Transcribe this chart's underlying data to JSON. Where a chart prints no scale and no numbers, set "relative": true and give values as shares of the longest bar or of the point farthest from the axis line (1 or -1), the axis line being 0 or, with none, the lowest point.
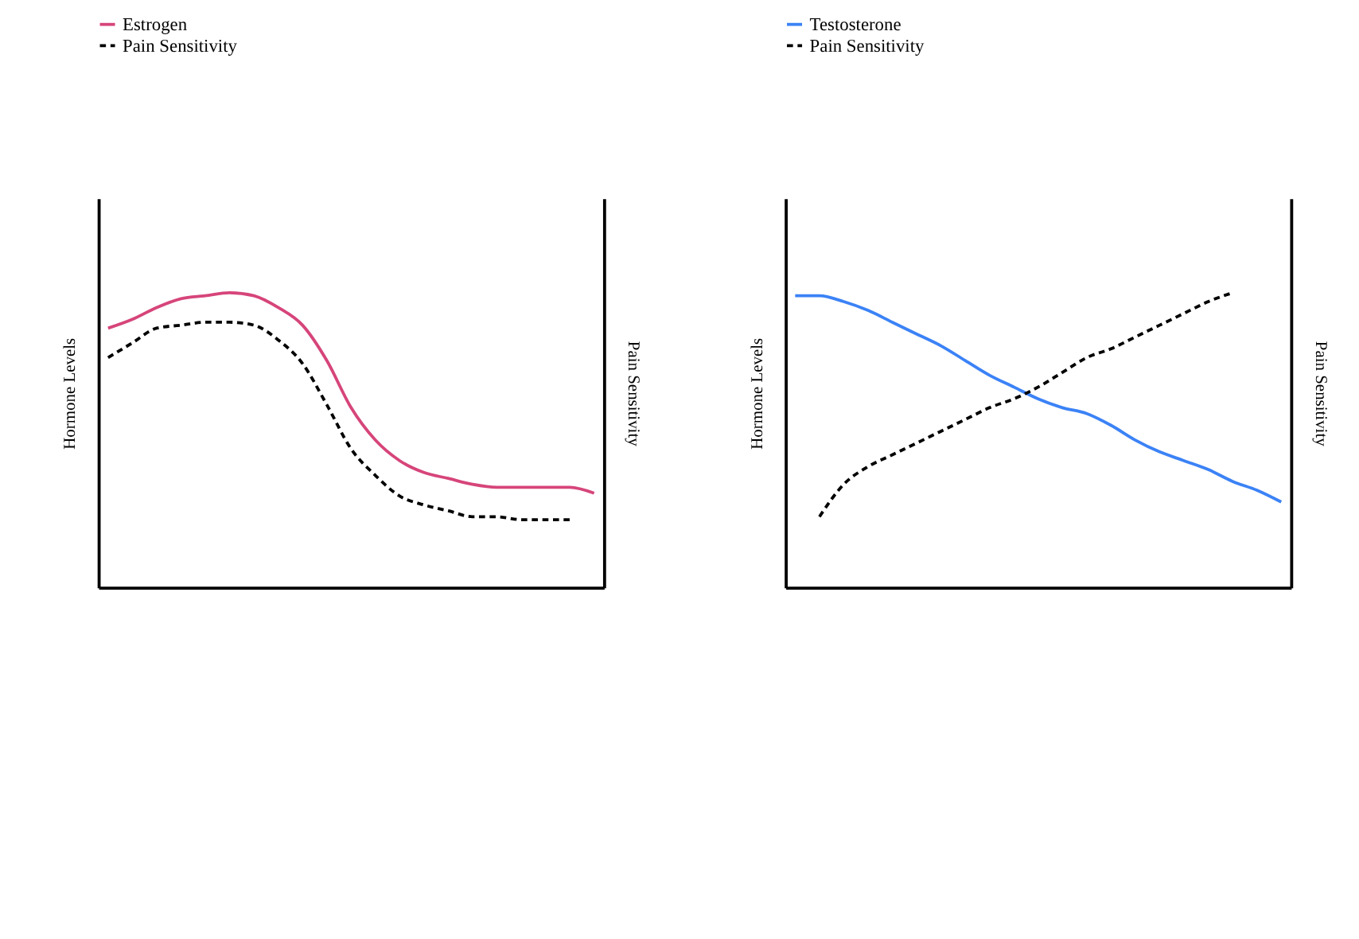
{
  "chart_data": [
    {
      "type": "line",
      "ylabel": "Hormone Levels",
      "y2label": "Pain Sensitivity",
      "relative": true,
      "legend": "top",
      "tick_labels": false,
      "grid": false,
      "marker": "none",
      "categories": [
        null,
        null,
        null,
        null,
        null,
        null,
        null,
        null,
        null,
        null,
        null,
        null,
        null,
        null,
        null,
        null,
        null,
        null,
        null,
        null,
        null
      ],
      "series": [
        {
          "name": "Estrogen",
          "color": "#d6457a",
          "line_style": "solid",
          "values": [
            0.88,
            0.91,
            0.95,
            0.98,
            0.99,
            1,
            0.99,
            0.95,
            0.89,
            0.77,
            0.61,
            0.5,
            0.43,
            0.39,
            0.37,
            0.35,
            0.34,
            0.34,
            0.34,
            0.34,
            0.32
          ]
        },
        {
          "name": "Pain Sensitivity",
          "color": "#000000",
          "line_style": "dashed",
          "values": [
            0.78,
            0.83,
            0.88,
            0.89,
            0.9,
            0.9,
            0.89,
            0.84,
            0.76,
            0.62,
            0.47,
            0.38,
            0.31,
            0.28,
            0.26,
            0.24,
            0.24,
            0.23,
            0.23,
            0.23,
            null
          ]
        }
      ]
    },
    {
      "type": "line",
      "ylabel": "Hormone Levels",
      "y2label": "Pain Sensitivity",
      "relative": true,
      "legend": "top",
      "tick_labels": false,
      "grid": false,
      "marker": "none",
      "categories": [
        null,
        null,
        null,
        null,
        null,
        null,
        null,
        null,
        null,
        null,
        null,
        null,
        null,
        null,
        null,
        null,
        null,
        null,
        null,
        null,
        null
      ],
      "series": [
        {
          "name": "Testosterone",
          "color": "#3b82f6",
          "line_style": "solid",
          "values": [
            0.99,
            0.99,
            0.97,
            0.94,
            0.9,
            0.86,
            0.82,
            0.77,
            0.72,
            0.68,
            0.64,
            0.61,
            0.59,
            0.55,
            0.5,
            0.46,
            0.43,
            0.4,
            0.36,
            0.33,
            0.29
          ]
        },
        {
          "name": "Pain Sensitivity",
          "color": "#000000",
          "line_style": "dashed",
          "values": [
            null,
            0.24,
            0.35,
            0.41,
            0.45,
            0.49,
            0.53,
            0.57,
            0.61,
            0.64,
            0.68,
            0.73,
            0.78,
            0.81,
            0.85,
            0.89,
            0.93,
            0.97,
            1.0,
            null,
            null
          ]
        }
      ]
    }
  ]
}
